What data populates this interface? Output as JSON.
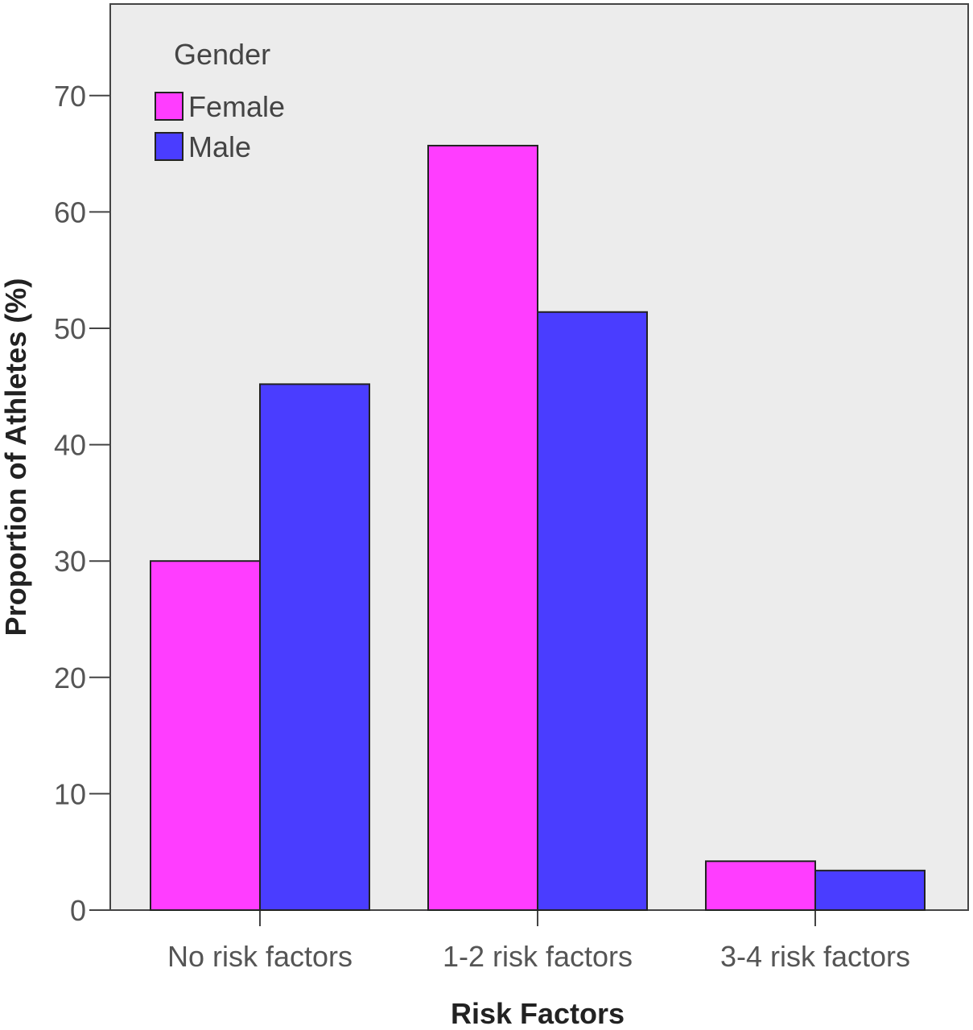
{
  "chart_data": {
    "type": "bar",
    "title": "",
    "xlabel": "Risk Factors",
    "ylabel": "Proportion of Athletes (%)",
    "categories": [
      "No risk factors",
      "1-2 risk factors",
      "3-4 risk factors"
    ],
    "series": [
      {
        "name": "Female",
        "color": "#ff3dff",
        "values": [
          30.0,
          65.7,
          4.2
        ]
      },
      {
        "name": "Male",
        "color": "#4a3dff",
        "values": [
          45.2,
          51.4,
          3.4
        ]
      }
    ],
    "ylim": [
      0,
      75
    ],
    "yticks": [
      0,
      10,
      20,
      30,
      40,
      50,
      60,
      70
    ],
    "grid": false,
    "legend": {
      "title": "Gender",
      "placement": "top-left"
    },
    "plot_background": "#ececec"
  }
}
